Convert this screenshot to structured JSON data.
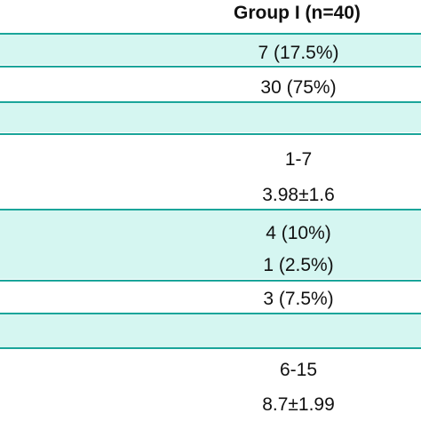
{
  "header": {
    "group_label": "Group I (n=40)"
  },
  "rows": [
    {
      "value": "7 (17.5%)"
    },
    {
      "value": "30 (75%)"
    },
    {
      "value": ""
    },
    {
      "value": "1-7"
    },
    {
      "value": "3.98±1.6"
    },
    {
      "value": "4 (10%)"
    },
    {
      "value": "1 (2.5%)"
    },
    {
      "value": "3 (7.5%)"
    },
    {
      "value": ""
    },
    {
      "value": "6-15"
    },
    {
      "value": "8.7±1.99"
    }
  ],
  "colors": {
    "band": "#d5f6f1",
    "divider": "#1aa59a",
    "background": "#ffffff"
  }
}
